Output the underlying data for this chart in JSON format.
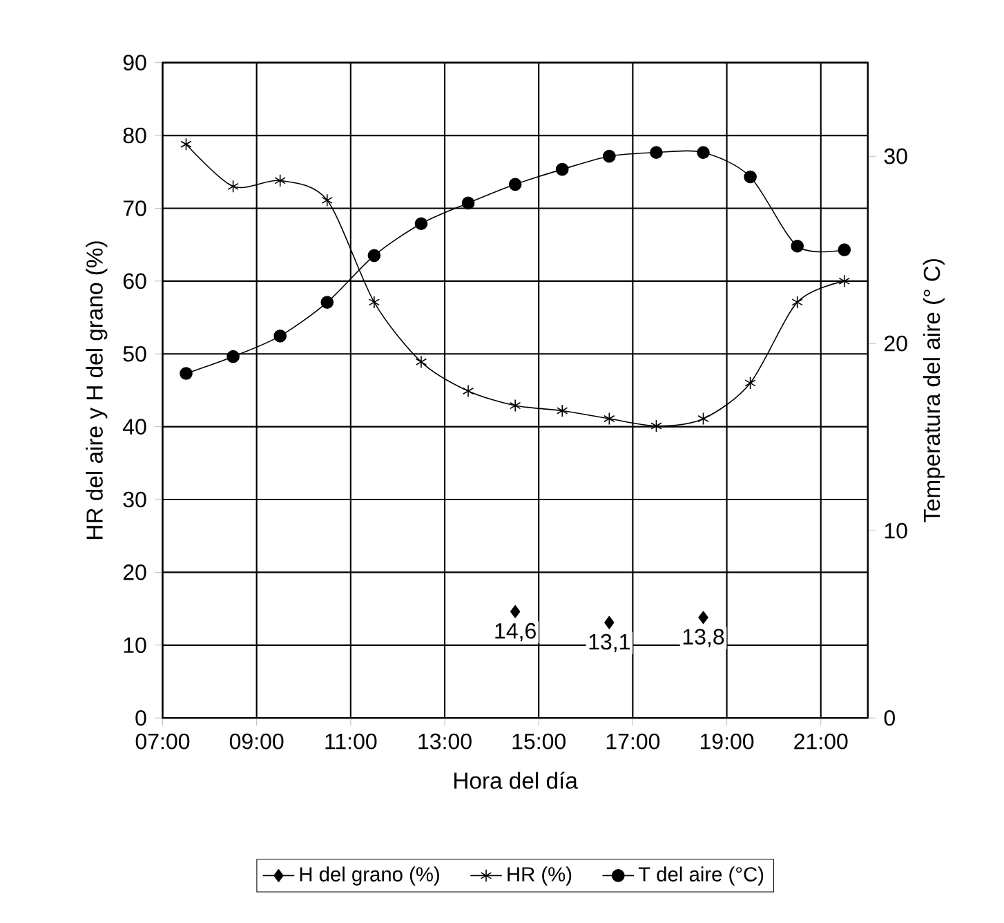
{
  "chart_data": {
    "type": "line",
    "xlabel": "Hora del día",
    "ylabel": "HR del aire y H del grano (%)",
    "y2label": "Temperatura del aire (° C)",
    "x": [
      7.5,
      8.5,
      9.5,
      10.5,
      11.5,
      12.5,
      13.5,
      14.5,
      15.5,
      16.5,
      17.5,
      18.5,
      19.5,
      20.5,
      21.5
    ],
    "xlim": [
      7,
      22
    ],
    "xticks": [
      {
        "value": 7,
        "label": "07:00"
      },
      {
        "value": 9,
        "label": "09:00"
      },
      {
        "value": 11,
        "label": "11:00"
      },
      {
        "value": 13,
        "label": "13:00"
      },
      {
        "value": 15,
        "label": "15:00"
      },
      {
        "value": 17,
        "label": "17:00"
      },
      {
        "value": 19,
        "label": "19:00"
      },
      {
        "value": 21,
        "label": "21:00"
      }
    ],
    "ylim": [
      0,
      90
    ],
    "yticks": [
      0,
      10,
      20,
      30,
      40,
      50,
      60,
      70,
      80,
      90
    ],
    "y2lim": [
      0,
      35
    ],
    "y2ticks": [
      0,
      10,
      20,
      30
    ],
    "grid": true,
    "legend": "bottom",
    "series": [
      {
        "name": "H del grano (%)",
        "color": "#000000",
        "marker": "diamond",
        "values": [
          null,
          null,
          null,
          null,
          null,
          null,
          null,
          14.6,
          null,
          13.1,
          null,
          13.8,
          null,
          null,
          null
        ],
        "value_labels": [
          null,
          null,
          null,
          null,
          null,
          null,
          null,
          "14,6",
          null,
          "13,1",
          null,
          "13,8",
          null,
          null,
          null
        ]
      },
      {
        "name": "HR (%)",
        "color": "#000000",
        "marker": "cross",
        "values": [
          78.8,
          73.0,
          73.8,
          71.1,
          57.1,
          48.9,
          44.9,
          42.9,
          42.2,
          41.1,
          40.1,
          41.1,
          46.0,
          57.1,
          60.0
        ]
      },
      {
        "name": "T del aire (°C)",
        "color": "#000000",
        "marker": "circle",
        "axis": "y2",
        "values": [
          18.4,
          19.3,
          20.4,
          22.2,
          24.7,
          26.4,
          27.5,
          28.5,
          29.3,
          30.0,
          30.2,
          30.2,
          28.9,
          25.2,
          25.0
        ]
      }
    ]
  }
}
